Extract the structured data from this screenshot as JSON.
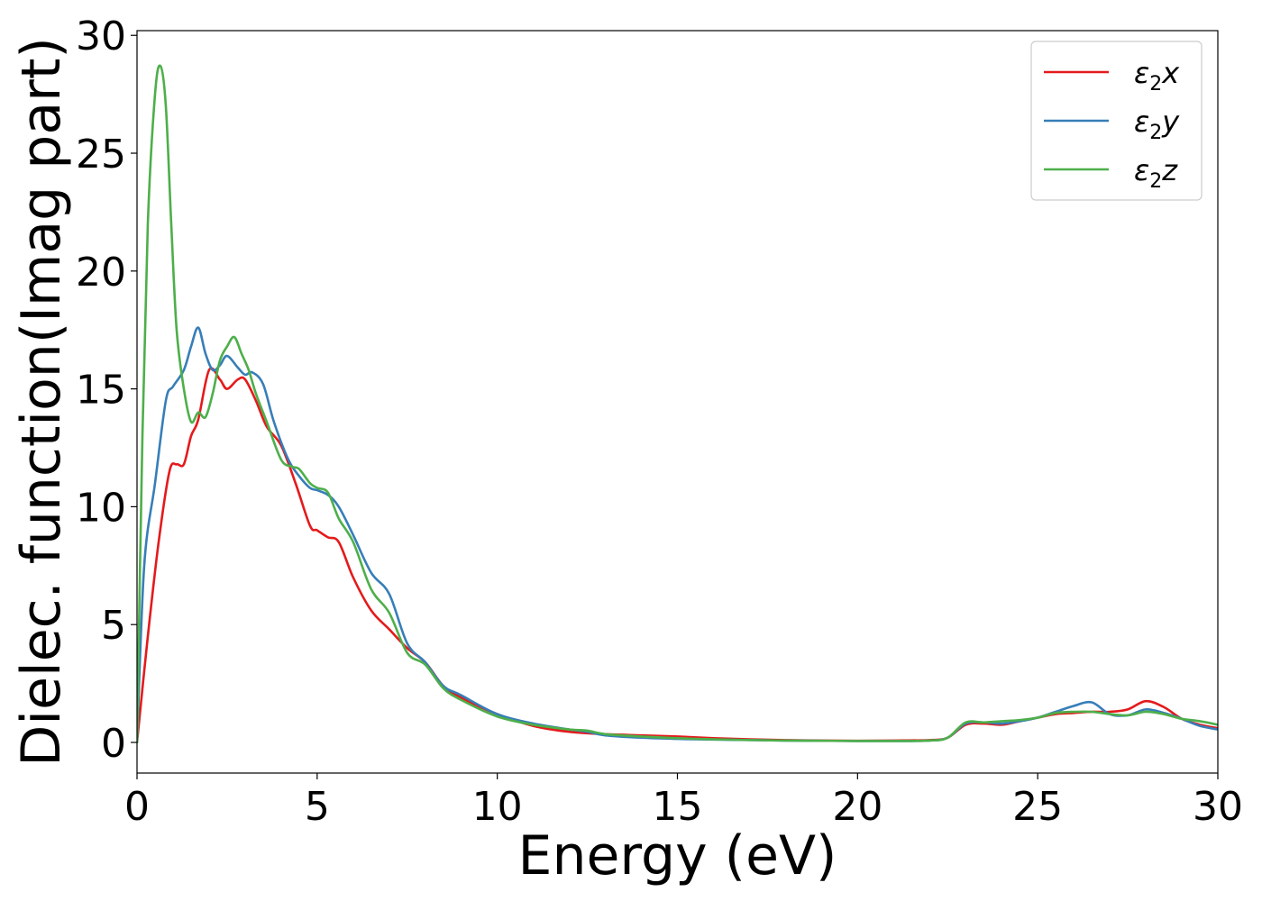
{
  "chart_data": {
    "type": "line",
    "title": "",
    "xlabel": "Energy (eV)",
    "ylabel": "Dielec. function(Imag part)",
    "xlim": [
      0,
      30
    ],
    "ylim": [
      -1.3,
      30.2
    ],
    "xticks": [
      0,
      5,
      10,
      15,
      20,
      25,
      30
    ],
    "yticks": [
      0,
      5,
      10,
      15,
      20,
      25,
      30
    ],
    "grid": false,
    "legend_position": "top-right",
    "series": [
      {
        "name": "ε2x",
        "legend": {
          "base": "ε",
          "sub": "2",
          "axis": "x"
        },
        "color": "#e41a1c",
        "x": [
          0,
          0.3,
          0.6,
          0.9,
          1.1,
          1.3,
          1.5,
          1.7,
          2.0,
          2.3,
          2.5,
          2.8,
          3.0,
          3.3,
          3.6,
          4.0,
          4.4,
          4.8,
          5.0,
          5.3,
          5.6,
          6.0,
          6.5,
          7.0,
          7.5,
          8.0,
          8.5,
          9.0,
          10.0,
          11.0,
          12.0,
          13.0,
          14.0,
          15.0,
          16.0,
          17.0,
          18.0,
          19.0,
          20.0,
          21.0,
          22.0,
          22.5,
          23.0,
          23.5,
          24.0,
          24.5,
          25.0,
          25.5,
          26.0,
          26.5,
          27.0,
          27.5,
          28.0,
          28.5,
          29.0,
          29.5,
          30.0
        ],
        "y": [
          0,
          4.5,
          8.5,
          11.5,
          11.8,
          11.8,
          13.0,
          13.7,
          15.8,
          15.4,
          15.0,
          15.4,
          15.4,
          14.5,
          13.4,
          12.6,
          11.0,
          9.2,
          9.0,
          8.7,
          8.5,
          7.0,
          5.6,
          4.8,
          4.0,
          3.4,
          2.4,
          1.9,
          1.2,
          0.7,
          0.45,
          0.35,
          0.3,
          0.25,
          0.18,
          0.13,
          0.1,
          0.08,
          0.07,
          0.08,
          0.1,
          0.2,
          0.75,
          0.8,
          0.75,
          0.9,
          1.05,
          1.2,
          1.25,
          1.3,
          1.3,
          1.4,
          1.75,
          1.5,
          1.0,
          0.75,
          0.6
        ]
      },
      {
        "name": "ε2y",
        "legend": {
          "base": "ε",
          "sub": "2",
          "axis": "y"
        },
        "color": "#377eb8",
        "x": [
          0,
          0.2,
          0.5,
          0.8,
          1.0,
          1.3,
          1.5,
          1.7,
          1.9,
          2.1,
          2.3,
          2.5,
          2.8,
          3.0,
          3.2,
          3.5,
          3.8,
          4.2,
          4.5,
          4.8,
          5.0,
          5.3,
          5.6,
          6.0,
          6.5,
          7.0,
          7.5,
          8.0,
          8.5,
          9.0,
          10.0,
          11.0,
          12.0,
          12.5,
          13.0,
          14.0,
          15.0,
          16.0,
          17.0,
          18.0,
          19.0,
          20.0,
          21.0,
          22.0,
          22.5,
          23.0,
          23.5,
          24.0,
          24.5,
          25.0,
          25.5,
          26.0,
          26.5,
          27.0,
          27.5,
          28.0,
          28.5,
          29.0,
          29.5,
          30.0
        ],
        "y": [
          0,
          7.5,
          11.0,
          14.5,
          15.1,
          15.8,
          16.8,
          17.6,
          16.5,
          15.8,
          16.0,
          16.4,
          15.9,
          15.6,
          15.7,
          15.2,
          13.6,
          12.0,
          11.3,
          10.8,
          10.7,
          10.5,
          10.0,
          8.8,
          7.2,
          6.3,
          4.2,
          3.4,
          2.4,
          2.0,
          1.2,
          0.8,
          0.55,
          0.45,
          0.3,
          0.2,
          0.15,
          0.12,
          0.1,
          0.08,
          0.07,
          0.06,
          0.06,
          0.08,
          0.2,
          0.8,
          0.85,
          0.8,
          0.9,
          1.05,
          1.3,
          1.55,
          1.7,
          1.2,
          1.15,
          1.4,
          1.25,
          1.0,
          0.7,
          0.55
        ]
      },
      {
        "name": "ε2z",
        "legend": {
          "base": "ε",
          "sub": "2",
          "axis": "z"
        },
        "color": "#4daf4a",
        "x": [
          0,
          0.15,
          0.3,
          0.5,
          0.65,
          0.8,
          0.95,
          1.1,
          1.3,
          1.5,
          1.7,
          1.9,
          2.1,
          2.3,
          2.5,
          2.7,
          2.9,
          3.1,
          3.3,
          3.6,
          4.0,
          4.3,
          4.5,
          4.8,
          5.0,
          5.3,
          5.6,
          6.0,
          6.5,
          7.0,
          7.5,
          8.0,
          8.5,
          9.0,
          10.0,
          11.0,
          12.0,
          12.5,
          13.0,
          14.0,
          15.0,
          16.0,
          17.0,
          18.0,
          19.0,
          20.0,
          21.0,
          22.0,
          22.5,
          23.0,
          23.5,
          24.0,
          24.5,
          25.0,
          25.5,
          26.0,
          26.5,
          27.0,
          27.5,
          28.0,
          28.5,
          29.0,
          29.5,
          30.0
        ],
        "y": [
          0,
          13.0,
          22.0,
          27.5,
          28.7,
          27.0,
          22.0,
          17.5,
          15.0,
          13.6,
          14.0,
          13.8,
          14.8,
          16.2,
          16.8,
          17.2,
          16.5,
          15.8,
          14.8,
          13.6,
          12.0,
          11.7,
          11.6,
          11.0,
          10.8,
          10.6,
          9.5,
          8.5,
          6.5,
          5.5,
          3.8,
          3.3,
          2.3,
          1.8,
          1.1,
          0.75,
          0.55,
          0.5,
          0.35,
          0.25,
          0.18,
          0.13,
          0.1,
          0.08,
          0.07,
          0.06,
          0.06,
          0.08,
          0.2,
          0.85,
          0.85,
          0.9,
          0.95,
          1.05,
          1.25,
          1.3,
          1.3,
          1.2,
          1.15,
          1.3,
          1.2,
          1.0,
          0.9,
          0.75
        ]
      }
    ]
  }
}
